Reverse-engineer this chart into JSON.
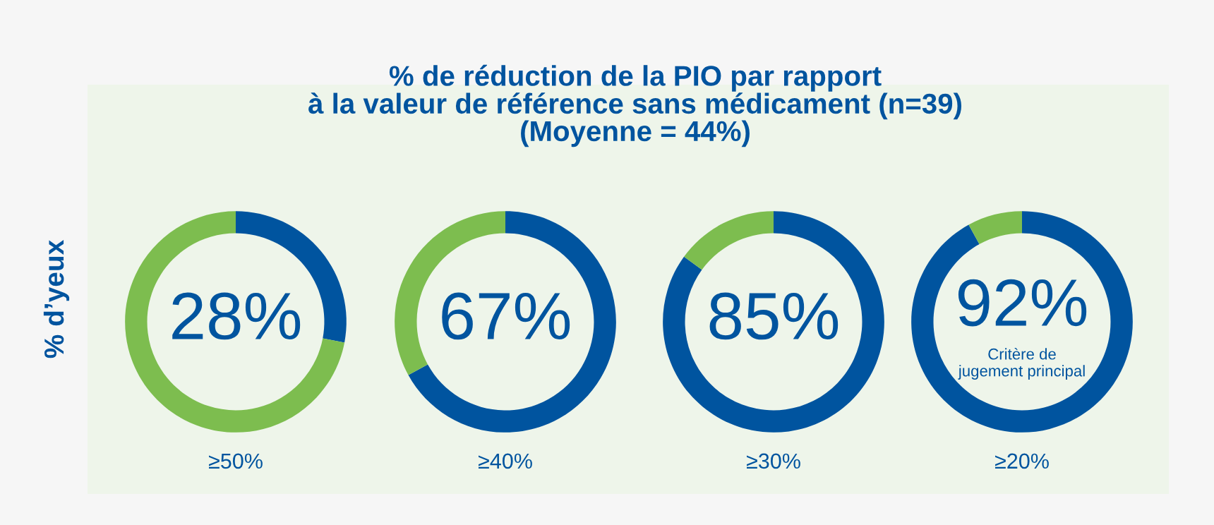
{
  "chart_data": [
    {
      "type": "donut",
      "title": "% de réduction de la PIO par rapport\nà la valeur de référence sans médicament (n=39)\n(Moyenne = 44%)",
      "ylabel": "% d’yeux",
      "xlabel": "≥50%",
      "categories": [
        null,
        null
      ],
      "values": [
        28,
        72
      ],
      "colors": [
        "#00549f",
        "#7dbd4f"
      ],
      "value_labels": [
        "28%",
        null
      ]
    },
    {
      "type": "donut",
      "xlabel": "≥40%",
      "categories": [
        null,
        null
      ],
      "values": [
        67,
        33
      ],
      "colors": [
        "#00549f",
        "#7dbd4f"
      ],
      "value_labels": [
        "67%",
        null
      ]
    },
    {
      "type": "donut",
      "xlabel": "≥30%",
      "categories": [
        null,
        null
      ],
      "values": [
        85,
        15
      ],
      "colors": [
        "#00549f",
        "#7dbd4f"
      ],
      "value_labels": [
        "85%",
        null
      ]
    },
    {
      "type": "donut",
      "xlabel": "≥20%",
      "categories": [
        null,
        null
      ],
      "values": [
        92,
        8
      ],
      "colors": [
        "#00549f",
        "#7dbd4f"
      ],
      "value_labels": [
        "92%",
        null
      ],
      "annotations": [
        "Critère de\njugement principal"
      ]
    }
  ]
}
